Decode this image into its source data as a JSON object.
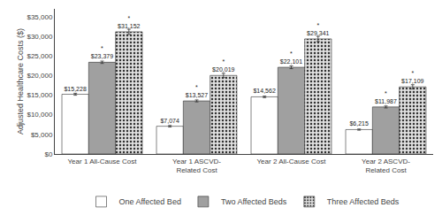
{
  "chart_data": {
    "type": "bar",
    "ylabel": "Adjusted Healthcare Costs ($)",
    "categories": [
      "Year 1 All-Cause Cost",
      "Year 1 ASCVD-\nRelated Cost",
      "Year 2 All-Cause Cost",
      "Year 2 ASCVD-\nRelated Cost"
    ],
    "series": [
      {
        "name": "One Affected Bed",
        "color": "#ffffff",
        "values": [
          15228,
          7074,
          14562,
          6215
        ],
        "value_labels": [
          "$15,228",
          "$7,074",
          "$14,562",
          "$6,215"
        ],
        "errors": [
          250,
          200,
          200,
          150
        ]
      },
      {
        "name": "Two Affected Beds",
        "color": "#a0a0a0",
        "values": [
          23379,
          13527,
          22101,
          11987
        ],
        "value_labels": [
          "$23,379",
          "$13,527",
          "$22,101",
          "$11,987"
        ],
        "errors": [
          300,
          250,
          350,
          250
        ],
        "annotation": "*"
      },
      {
        "name": "Three Affected Beds",
        "color": "#e0e0e0",
        "values": [
          31152,
          20019,
          29341,
          17109
        ],
        "value_labels": [
          "$31,152",
          "$20,019",
          "$29,341",
          "$17,109"
        ],
        "errors": [
          650,
          550,
          650,
          550
        ],
        "annotation": "*"
      }
    ],
    "ylim": [
      0,
      37000
    ],
    "yticks": [
      {
        "value": 0,
        "label": "$0"
      },
      {
        "value": 5000,
        "label": "$5,000"
      },
      {
        "value": 10000,
        "label": "$10,000"
      },
      {
        "value": 15000,
        "label": "$15,000"
      },
      {
        "value": 20000,
        "label": "$20,000"
      },
      {
        "value": 25000,
        "label": "$25,000"
      },
      {
        "value": 30000,
        "label": "$30,000"
      },
      {
        "value": 35000,
        "label": "$35,000"
      }
    ],
    "grid": false,
    "legend": "bottom",
    "data_labels": true
  }
}
